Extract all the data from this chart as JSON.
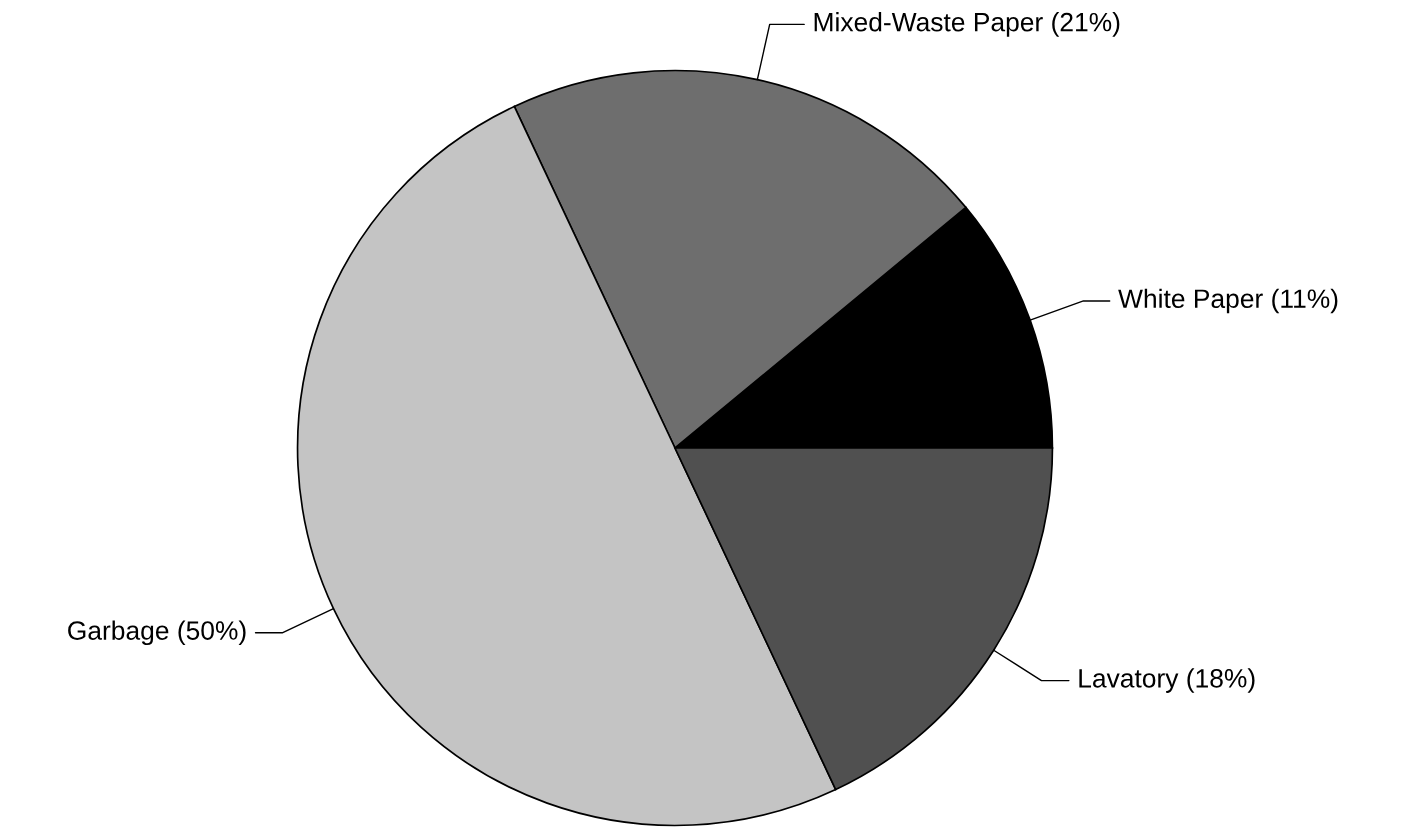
{
  "chart_data": {
    "type": "pie",
    "categories": [
      "White Paper (11%)",
      "Mixed-Waste Paper (21%)",
      "Garbage (50%)",
      "Lavatory (18%)"
    ],
    "values": [
      11,
      21,
      50,
      18
    ],
    "colors": [
      "#000000",
      "#6e6e6e",
      "#c4c4c4",
      "#505050"
    ]
  }
}
